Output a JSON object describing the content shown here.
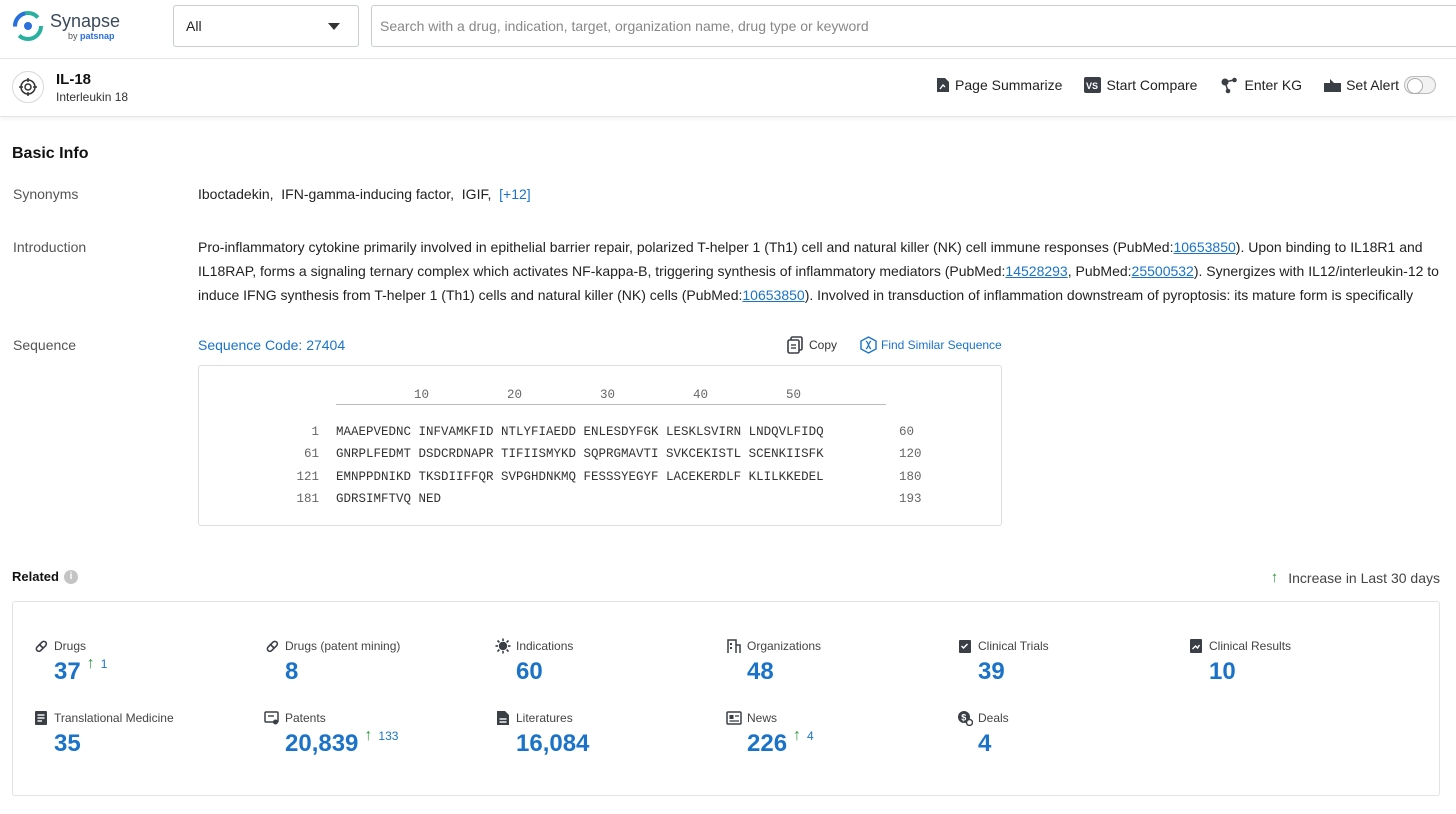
{
  "app": {
    "logo_name": "Synapse",
    "logo_by": "by",
    "logo_brand": "patsnap"
  },
  "search": {
    "scope": "All",
    "placeholder": "Search with a drug, indication, target, organization name, drug type or keyword"
  },
  "target": {
    "name": "IL-18",
    "full_name": "Interleukin 18",
    "actions": {
      "summarize": "Page Summarize",
      "compare": "Start Compare",
      "kg": "Enter KG",
      "alert": "Set Alert"
    },
    "alert_enabled": false
  },
  "basic_info": {
    "title": "Basic Info",
    "synonyms_label": "Synonyms",
    "synonyms": [
      "Iboctadekin,",
      "IFN-gamma-inducing factor,",
      "IGIF,"
    ],
    "synonyms_more": "[+12]",
    "introduction_label": "Introduction",
    "introduction": {
      "t1": "Pro-inflammatory cytokine primarily involved in epithelial barrier repair, polarized T-helper 1 (Th1) cell and natural killer (NK) cell immune responses (PubMed:",
      "l1": "10653850",
      "t2": "). Upon binding to IL18R1 and IL18RAP, forms a signaling ternary complex which activates NF-kappa-B, triggering synthesis of inflammatory mediators (PubMed:",
      "l2": "14528293",
      "t3": ", PubMed:",
      "l3": "25500532",
      "t4": "). Synergizes with IL12/interleukin-12 to induce IFNG synthesis from T-helper 1 (Th1) cells and natural killer (NK) cells (PubMed:",
      "l4": "10653850",
      "t5": "). Involved in transduction of inflammation downstream of pyroptosis: its mature form is specifically"
    },
    "sequence_label": "Sequence",
    "sequence_code": "Sequence Code: 27404",
    "copy_label": "Copy",
    "find_similar_label": "Find Similar Sequence",
    "ruler": [
      "10",
      "20",
      "30",
      "40",
      "50"
    ],
    "sequence_rows": [
      {
        "start": "1",
        "seq": "MAAEPVEDNC INFVAMKFID NTLYFIAEDD ENLESDYFGK LESKLSVIRN LNDQVLFIDQ",
        "end": "60"
      },
      {
        "start": "61",
        "seq": "GNRPLFEDMT DSDCRDNAPR TIFIISMYKD SQPRGMAVTI SVKCEKISTL SCENKIISFK",
        "end": "120"
      },
      {
        "start": "121",
        "seq": "EMNPPDNIKD TKSDIIFFQR SVPGHDNKMQ FESSSYEGYF LACEKERDLF KLILKKEDEL",
        "end": "180"
      },
      {
        "start": "181",
        "seq": "GDRSIMFTVQ NED",
        "end": "193"
      }
    ]
  },
  "related": {
    "title": "Related",
    "increase_note": "Increase in Last 30 days",
    "stats": [
      {
        "label": "Drugs",
        "icon": "pill-icon",
        "value": "37",
        "delta": "1"
      },
      {
        "label": "Drugs (patent mining)",
        "icon": "pill-icon",
        "value": "8",
        "delta": ""
      },
      {
        "label": "Indications",
        "icon": "virus-icon",
        "value": "60",
        "delta": ""
      },
      {
        "label": "Organizations",
        "icon": "building-icon",
        "value": "48",
        "delta": ""
      },
      {
        "label": "Clinical Trials",
        "icon": "clipboard-icon",
        "value": "39",
        "delta": ""
      },
      {
        "label": "Clinical Results",
        "icon": "chart-doc-icon",
        "value": "10",
        "delta": ""
      },
      {
        "label": "Translational Medicine",
        "icon": "doc-icon",
        "value": "35",
        "delta": ""
      },
      {
        "label": "Patents",
        "icon": "patent-icon",
        "value": "20,839",
        "delta": "133"
      },
      {
        "label": "Literatures",
        "icon": "book-icon",
        "value": "16,084",
        "delta": ""
      },
      {
        "label": "News",
        "icon": "news-icon",
        "value": "226",
        "delta": "4"
      },
      {
        "label": "Deals",
        "icon": "deal-icon",
        "value": "4",
        "delta": ""
      }
    ]
  },
  "colors": {
    "link": "#1a73c8",
    "increase_arrow": "#2e9a3f"
  }
}
